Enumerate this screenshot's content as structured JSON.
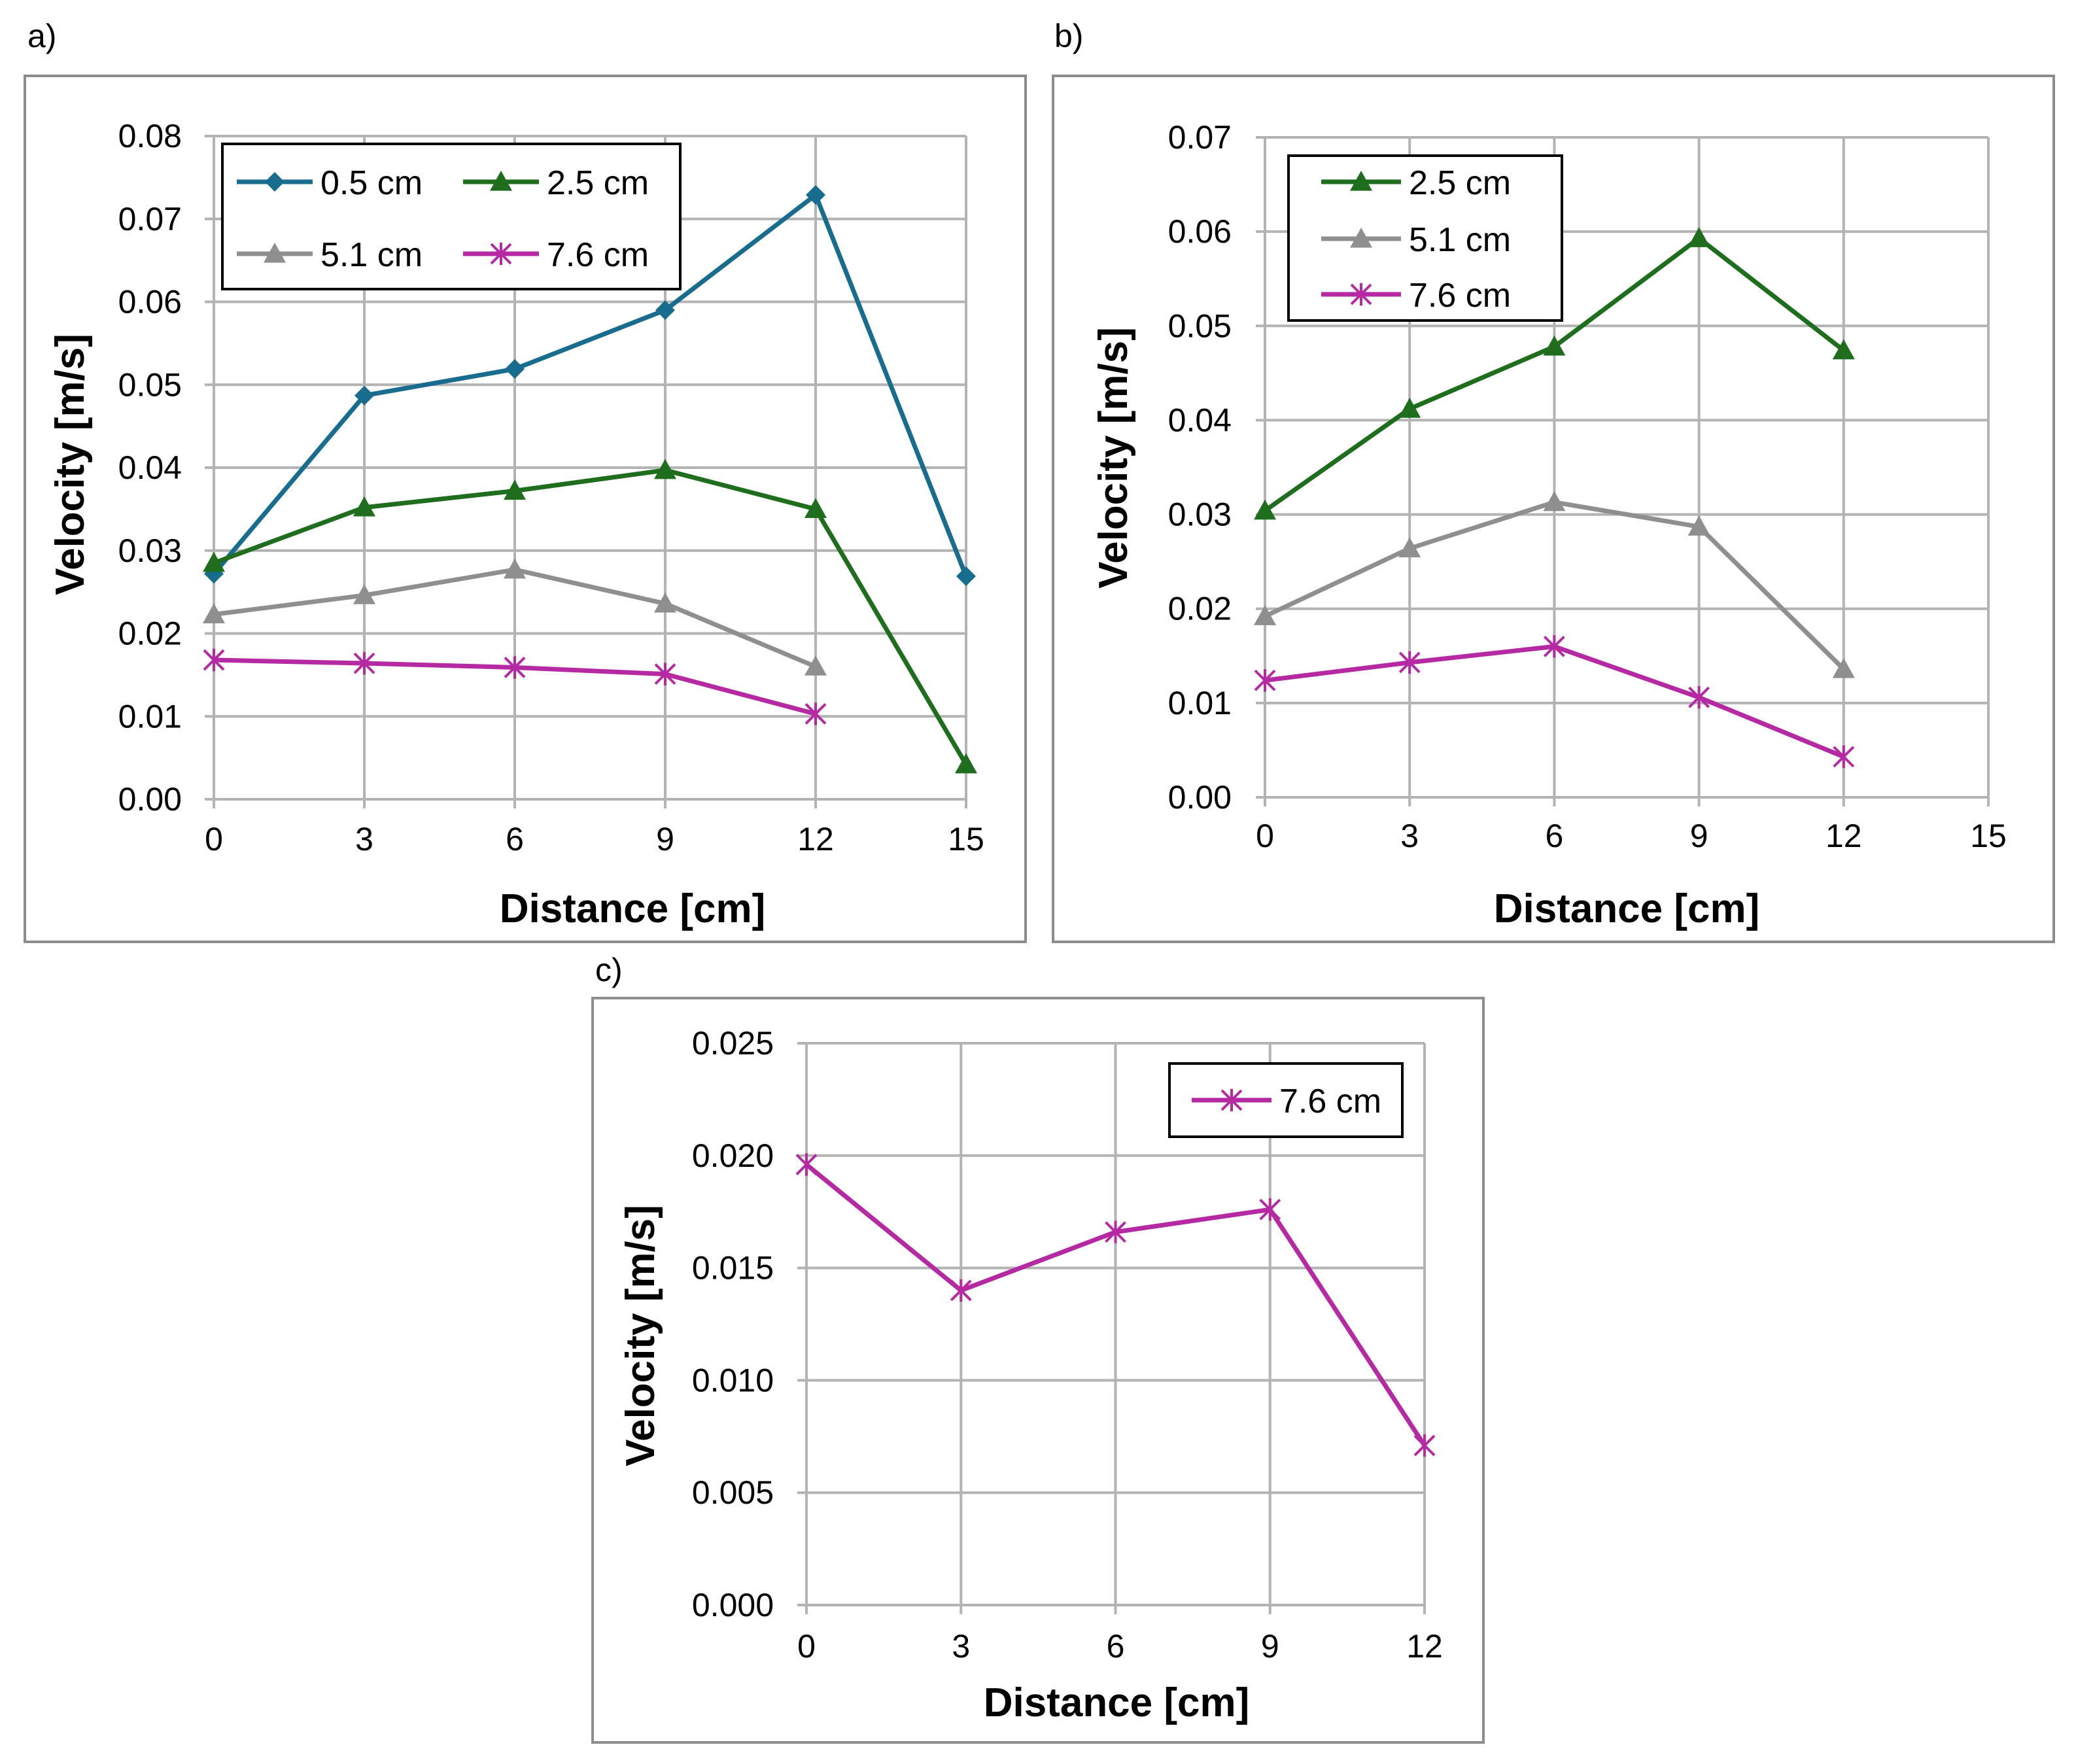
{
  "colors": {
    "0.5 cm": "#186d8e",
    "2.5 cm": "#1e6e1e",
    "5.1 cm": "#8f8f8f",
    "7.6 cm": "#b52aa3"
  },
  "markers": {
    "0.5 cm": "diamond",
    "2.5 cm": "triangle",
    "5.1 cm": "triangle",
    "7.6 cm": "star"
  },
  "chart_data": [
    {
      "panel": "a)",
      "type": "line",
      "title": "",
      "xlabel": "Distance [cm]",
      "ylabel": "Velocity [m/s]",
      "xlim": [
        0,
        15
      ],
      "ylim": [
        0,
        0.08
      ],
      "xticks": [
        "0",
        "3",
        "6",
        "9",
        "12",
        "15"
      ],
      "yticks": [
        "0.00",
        "0.01",
        "0.02",
        "0.03",
        "0.04",
        "0.05",
        "0.06",
        "0.07",
        "0.08"
      ],
      "grid": true,
      "legend_position": "top-left",
      "series": [
        {
          "name": "0.5 cm",
          "x": [
            0,
            3,
            6,
            9,
            12,
            15
          ],
          "values": [
            0.0272,
            0.0487,
            0.0519,
            0.059,
            0.0729,
            0.0269
          ]
        },
        {
          "name": "2.5 cm",
          "x": [
            0,
            3,
            6,
            9,
            12,
            15
          ],
          "values": [
            0.0285,
            0.0352,
            0.0372,
            0.0397,
            0.035,
            0.0042
          ]
        },
        {
          "name": "5.1 cm",
          "x": [
            0,
            3,
            6,
            9,
            12
          ],
          "values": [
            0.0223,
            0.0246,
            0.0277,
            0.0236,
            0.016
          ]
        },
        {
          "name": "7.6 cm",
          "x": [
            0,
            3,
            6,
            9,
            12
          ],
          "values": [
            0.0168,
            0.0164,
            0.0159,
            0.0151,
            0.0103
          ]
        }
      ]
    },
    {
      "panel": "b)",
      "type": "line",
      "title": "",
      "xlabel": "Distance [cm]",
      "ylabel": "Velocity [m/s]",
      "xlim": [
        0,
        15
      ],
      "ylim": [
        0,
        0.07
      ],
      "xticks": [
        "0",
        "3",
        "6",
        "9",
        "12",
        "15"
      ],
      "yticks": [
        "0.00",
        "0.01",
        "0.02",
        "0.03",
        "0.04",
        "0.05",
        "0.06",
        "0.07"
      ],
      "grid": true,
      "legend_position": "top-left",
      "series": [
        {
          "name": "2.5 cm",
          "x": [
            0,
            3,
            6,
            9,
            12
          ],
          "values": [
            0.0304,
            0.0412,
            0.0478,
            0.0593,
            0.0474
          ]
        },
        {
          "name": "5.1 cm",
          "x": [
            0,
            3,
            6,
            9,
            12
          ],
          "values": [
            0.0192,
            0.0264,
            0.0313,
            0.0287,
            0.0136
          ]
        },
        {
          "name": "7.6 cm",
          "x": [
            0,
            3,
            6,
            9,
            12
          ],
          "values": [
            0.0124,
            0.0143,
            0.016,
            0.0106,
            0.0043
          ]
        }
      ]
    },
    {
      "panel": "c)",
      "type": "line",
      "title": "",
      "xlabel": "Distance [cm]",
      "ylabel": "Velocity [m/s]",
      "xlim": [
        0,
        12
      ],
      "ylim": [
        0,
        0.025
      ],
      "xticks": [
        "0",
        "3",
        "6",
        "9",
        "12"
      ],
      "yticks": [
        "0.000",
        "0.005",
        "0.010",
        "0.015",
        "0.020",
        "0.025"
      ],
      "grid": true,
      "legend_position": "top-right",
      "series": [
        {
          "name": "7.6 cm",
          "x": [
            0,
            3,
            6,
            9,
            12
          ],
          "values": [
            0.0196,
            0.014,
            0.0166,
            0.0176,
            0.0071
          ]
        }
      ]
    }
  ]
}
